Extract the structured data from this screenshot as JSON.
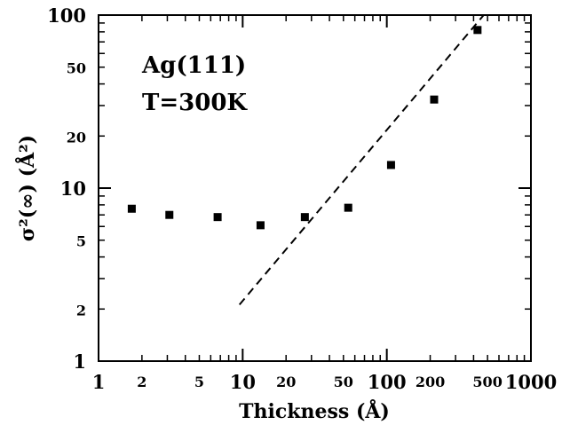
{
  "chart_data": {
    "type": "scatter",
    "xscale": "log",
    "yscale": "log",
    "xlim": [
      1,
      1000
    ],
    "ylim": [
      1,
      100
    ],
    "xlabel": "Thickness (Å)",
    "ylabel": "σ²(∞) (Å²)",
    "annotations": [
      "Ag(111)",
      "T=300K"
    ],
    "x_major_ticks": [
      {
        "value": 1,
        "label": "1"
      },
      {
        "value": 10,
        "label": "10"
      },
      {
        "value": 100,
        "label": "100"
      },
      {
        "value": 1000,
        "label": "1000"
      }
    ],
    "x_minor_ticks": [
      {
        "value": 2,
        "label": "2"
      },
      {
        "value": 5,
        "label": "5"
      },
      {
        "value": 20,
        "label": "20"
      },
      {
        "value": 50,
        "label": "50"
      },
      {
        "value": 200,
        "label": "200"
      },
      {
        "value": 500,
        "label": "500"
      }
    ],
    "y_major_ticks": [
      {
        "value": 1,
        "label": "1"
      },
      {
        "value": 10,
        "label": "10"
      },
      {
        "value": 100,
        "label": "100"
      }
    ],
    "y_minor_ticks": [
      {
        "value": 2,
        "label": "2"
      },
      {
        "value": 5,
        "label": "5"
      },
      {
        "value": 20,
        "label": "20"
      },
      {
        "value": 50,
        "label": "50"
      }
    ],
    "series": [
      {
        "marker": "square",
        "color": "#000000",
        "points": [
          {
            "x": 1.7,
            "y": 7.6
          },
          {
            "x": 3.1,
            "y": 7.0
          },
          {
            "x": 6.7,
            "y": 6.8
          },
          {
            "x": 13.3,
            "y": 6.1
          },
          {
            "x": 27,
            "y": 6.8
          },
          {
            "x": 54,
            "y": 7.7
          },
          {
            "x": 107,
            "y": 13.6
          },
          {
            "x": 213,
            "y": 32.5
          },
          {
            "x": 426,
            "y": 82
          }
        ]
      },
      {
        "style": "dashed",
        "color": "#000000",
        "points": [
          {
            "x": 9.5,
            "y": 2.12
          },
          {
            "x": 470,
            "y": 100
          }
        ]
      }
    ],
    "grid": false
  }
}
